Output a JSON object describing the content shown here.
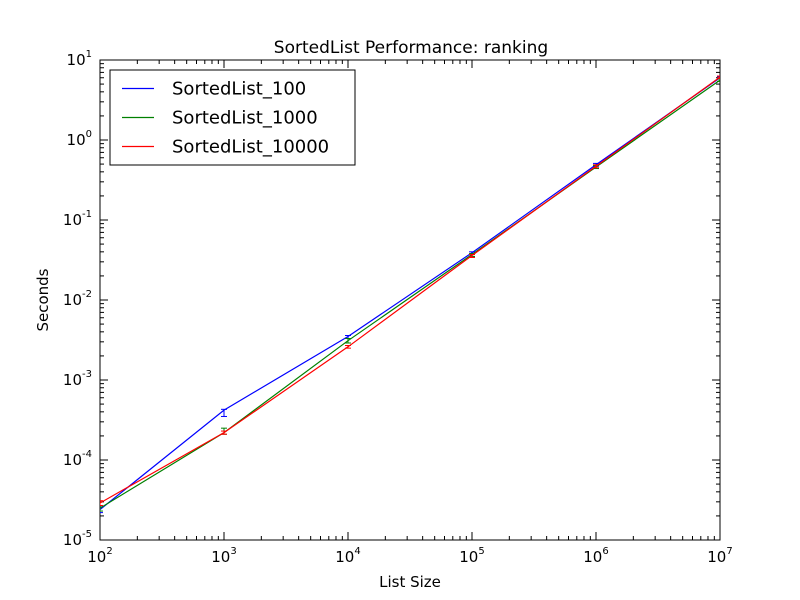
{
  "chart_data": {
    "type": "line",
    "title": "SortedList Performance: ranking",
    "xlabel": "List Size",
    "ylabel": "Seconds",
    "xscale": "log",
    "yscale": "log",
    "xlim": [
      100,
      10000000
    ],
    "ylim": [
      1e-05,
      10
    ],
    "x_ticks": [
      {
        "base": "10",
        "exp": "2"
      },
      {
        "base": "10",
        "exp": "3"
      },
      {
        "base": "10",
        "exp": "4"
      },
      {
        "base": "10",
        "exp": "5"
      },
      {
        "base": "10",
        "exp": "6"
      },
      {
        "base": "10",
        "exp": "7"
      }
    ],
    "y_ticks": [
      {
        "base": "10",
        "exp": "-5"
      },
      {
        "base": "10",
        "exp": "-4"
      },
      {
        "base": "10",
        "exp": "-3"
      },
      {
        "base": "10",
        "exp": "-2"
      },
      {
        "base": "10",
        "exp": "-1"
      },
      {
        "base": "10",
        "exp": "0"
      },
      {
        "base": "10",
        "exp": "1"
      }
    ],
    "x": [
      100,
      1000,
      10000,
      100000,
      1000000,
      10000000
    ],
    "legend": "top-left",
    "grid": false,
    "series": [
      {
        "name": "SortedList_100",
        "color": "#0000ff",
        "values": [
          2.4e-05,
          0.00042,
          0.0035,
          0.039,
          0.49,
          6.0
        ],
        "err_low": [
          2.2e-05,
          0.00035,
          0.0033,
          0.037,
          0.47,
          5.8
        ],
        "err_high": [
          2.6e-05,
          0.00043,
          0.0036,
          0.04,
          0.51,
          6.2
        ]
      },
      {
        "name": "SortedList_1000",
        "color": "#008000",
        "values": [
          2.5e-05,
          0.00022,
          0.0031,
          0.037,
          0.46,
          5.6
        ],
        "err_low": [
          2.3e-05,
          0.00021,
          0.0029,
          0.035,
          0.44,
          5.4
        ],
        "err_high": [
          2.7e-05,
          0.00025,
          0.0033,
          0.038,
          0.48,
          5.8
        ]
      },
      {
        "name": "SortedList_10000",
        "color": "#ff0000",
        "values": [
          2.9e-05,
          0.00022,
          0.0026,
          0.036,
          0.47,
          6.1
        ],
        "err_low": [
          2.7e-05,
          0.00021,
          0.0025,
          0.034,
          0.45,
          5.9
        ],
        "err_high": [
          3.1e-05,
          0.00023,
          0.0027,
          0.037,
          0.49,
          6.3
        ]
      }
    ]
  }
}
